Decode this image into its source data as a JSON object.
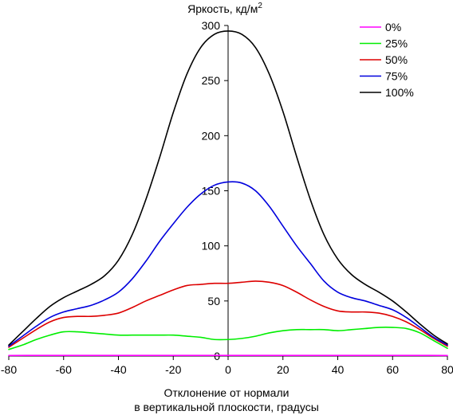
{
  "chart_data": {
    "type": "line",
    "ylabel": "Яркость, кд/м",
    "ylabel_sup": "2",
    "xlabel_line1": "Отклонение от нормали",
    "xlabel_line2": "в вертикальной плоскости, градусы",
    "xlim": [
      -80,
      80
    ],
    "ylim": [
      0,
      300
    ],
    "xticks": [
      -80,
      -60,
      -40,
      -20,
      0,
      20,
      40,
      60,
      80
    ],
    "yticks": [
      0,
      50,
      100,
      150,
      200,
      250,
      300
    ],
    "grid": false,
    "legend_position": "top-right",
    "series": [
      {
        "name": "0%",
        "color": "#ff00ff",
        "x": [
          -80,
          -70,
          -60,
          -40,
          -20,
          0,
          20,
          40,
          60,
          70,
          80
        ],
        "y": [
          0.5,
          0.6,
          0.6,
          0.6,
          0.6,
          0.6,
          0.6,
          0.6,
          0.6,
          0.6,
          0.5
        ]
      },
      {
        "name": "25%",
        "color": "#00ee00",
        "x": [
          -80,
          -75,
          -70,
          -65,
          -60,
          -55,
          -50,
          -45,
          -40,
          -35,
          -30,
          -25,
          -20,
          -15,
          -10,
          -5,
          0,
          5,
          10,
          15,
          20,
          25,
          30,
          35,
          40,
          45,
          50,
          55,
          60,
          65,
          70,
          75,
          80
        ],
        "y": [
          6,
          10,
          15,
          19,
          22,
          22,
          21,
          20,
          19,
          19,
          19,
          19,
          19,
          18,
          17,
          15,
          15,
          16,
          18,
          21,
          23,
          24,
          24,
          24,
          23,
          24,
          25,
          26,
          26,
          25,
          21,
          14,
          7
        ]
      },
      {
        "name": "50%",
        "color": "#dd0000",
        "x": [
          -80,
          -75,
          -70,
          -65,
          -60,
          -55,
          -50,
          -45,
          -40,
          -35,
          -30,
          -25,
          -20,
          -15,
          -10,
          -5,
          0,
          5,
          10,
          15,
          20,
          25,
          30,
          35,
          40,
          45,
          50,
          55,
          60,
          65,
          70,
          75,
          80
        ],
        "y": [
          8,
          16,
          24,
          31,
          35,
          36,
          36,
          37,
          39,
          44,
          50,
          55,
          60,
          64,
          65,
          66,
          66,
          67,
          68,
          67,
          64,
          58,
          51,
          45,
          41,
          40,
          40,
          39,
          36,
          31,
          24,
          16,
          9
        ]
      },
      {
        "name": "75%",
        "color": "#0000dd",
        "x": [
          -80,
          -75,
          -70,
          -65,
          -60,
          -55,
          -50,
          -45,
          -40,
          -35,
          -30,
          -25,
          -20,
          -15,
          -10,
          -5,
          0,
          5,
          10,
          15,
          20,
          25,
          30,
          35,
          40,
          45,
          50,
          55,
          60,
          65,
          70,
          75,
          80
        ],
        "y": [
          9,
          18,
          27,
          35,
          40,
          43,
          46,
          51,
          58,
          70,
          86,
          104,
          120,
          135,
          147,
          155,
          158,
          157,
          150,
          136,
          118,
          100,
          84,
          68,
          58,
          53,
          50,
          46,
          42,
          35,
          26,
          17,
          10
        ]
      },
      {
        "name": "100%",
        "color": "#000000",
        "x": [
          -80,
          -75,
          -70,
          -65,
          -60,
          -55,
          -50,
          -45,
          -40,
          -35,
          -30,
          -25,
          -20,
          -15,
          -10,
          -5,
          0,
          5,
          10,
          15,
          20,
          25,
          30,
          35,
          40,
          45,
          50,
          55,
          60,
          65,
          70,
          75,
          80
        ],
        "y": [
          10,
          22,
          34,
          45,
          53,
          59,
          65,
          73,
          87,
          110,
          142,
          180,
          221,
          256,
          280,
          292,
          295,
          292,
          280,
          256,
          222,
          181,
          142,
          110,
          88,
          74,
          65,
          58,
          50,
          40,
          29,
          19,
          11
        ]
      }
    ]
  }
}
